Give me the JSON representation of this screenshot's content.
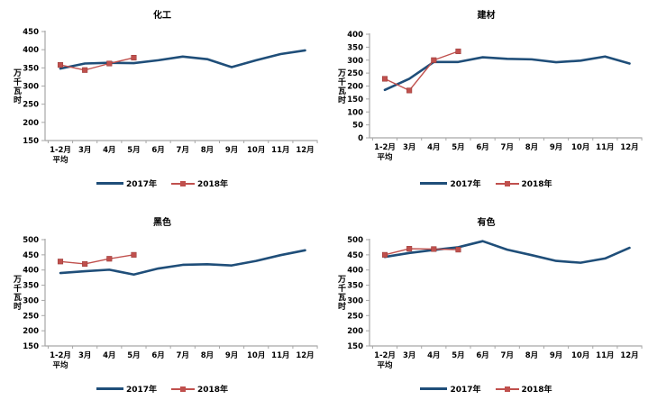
{
  "colors": {
    "series_2017": "#1F4E79",
    "series_2018": "#C0504D",
    "axis": "#A6A6A6",
    "text": "#000000",
    "background": "#FFFFFF"
  },
  "chart_data": [
    {
      "type": "line",
      "title": "化工",
      "ylabel": "万千瓦时",
      "categories": [
        "1-2月",
        "3月",
        "4月",
        "5月",
        "6月",
        "7月",
        "8月",
        "9月",
        "10月",
        "11月",
        "12月"
      ],
      "first_category_line2": "平均",
      "ylim": [
        150,
        450
      ],
      "yticks": [
        450,
        400,
        350,
        300,
        250,
        200,
        150
      ],
      "grid": false,
      "legend_position": "bottom",
      "series": [
        {
          "name": "2017年",
          "color": "#1F4E79",
          "marker": "none",
          "values": [
            348,
            362,
            364,
            363,
            371,
            381,
            374,
            352,
            371,
            388,
            398
          ]
        },
        {
          "name": "2018年",
          "color": "#C0504D",
          "marker": "square",
          "values": [
            358,
            344,
            362,
            378
          ]
        }
      ]
    },
    {
      "type": "line",
      "title": "建材",
      "ylabel": "万千瓦时",
      "categories": [
        "1-2月",
        "3月",
        "4月",
        "5月",
        "6月",
        "7月",
        "8月",
        "9月",
        "10月",
        "11月",
        "12月"
      ],
      "first_category_line2": "平均",
      "ylim": [
        0,
        400
      ],
      "yticks": [
        400,
        350,
        300,
        250,
        200,
        150,
        100,
        50,
        0
      ],
      "grid": false,
      "legend_position": "bottom",
      "series": [
        {
          "name": "2017年",
          "color": "#1F4E79",
          "marker": "none",
          "values": [
            185,
            228,
            293,
            293,
            311,
            305,
            303,
            292,
            298,
            314,
            287
          ]
        },
        {
          "name": "2018年",
          "color": "#C0504D",
          "marker": "square",
          "values": [
            228,
            183,
            300,
            334
          ]
        }
      ]
    },
    {
      "type": "line",
      "title": "黑色",
      "ylabel": "万千瓦时",
      "categories": [
        "1-2月",
        "3月",
        "4月",
        "5月",
        "6月",
        "7月",
        "8月",
        "9月",
        "10月",
        "11月",
        "12月"
      ],
      "first_category_line2": "平均",
      "ylim": [
        150,
        500
      ],
      "yticks": [
        500,
        450,
        400,
        350,
        300,
        250,
        200,
        150
      ],
      "grid": false,
      "legend_position": "bottom",
      "series": [
        {
          "name": "2017年",
          "color": "#1F4E79",
          "marker": "none",
          "values": [
            390,
            396,
            401,
            385,
            405,
            417,
            419,
            415,
            430,
            449,
            465
          ]
        },
        {
          "name": "2018年",
          "color": "#C0504D",
          "marker": "square",
          "values": [
            428,
            420,
            437,
            450
          ]
        }
      ]
    },
    {
      "type": "line",
      "title": "有色",
      "ylabel": "万千瓦时",
      "categories": [
        "1-2月",
        "3月",
        "4月",
        "5月",
        "6月",
        "7月",
        "8月",
        "9月",
        "10月",
        "11月",
        "12月"
      ],
      "first_category_line2": "平均",
      "ylim": [
        150,
        500
      ],
      "yticks": [
        500,
        450,
        400,
        350,
        300,
        250,
        200,
        150
      ],
      "grid": false,
      "legend_position": "bottom",
      "series": [
        {
          "name": "2017年",
          "color": "#1F4E79",
          "marker": "none",
          "values": [
            443,
            456,
            466,
            475,
            495,
            467,
            449,
            430,
            424,
            438,
            473
          ]
        },
        {
          "name": "2018年",
          "color": "#C0504D",
          "marker": "square",
          "values": [
            450,
            470,
            469,
            467
          ]
        }
      ]
    }
  ]
}
